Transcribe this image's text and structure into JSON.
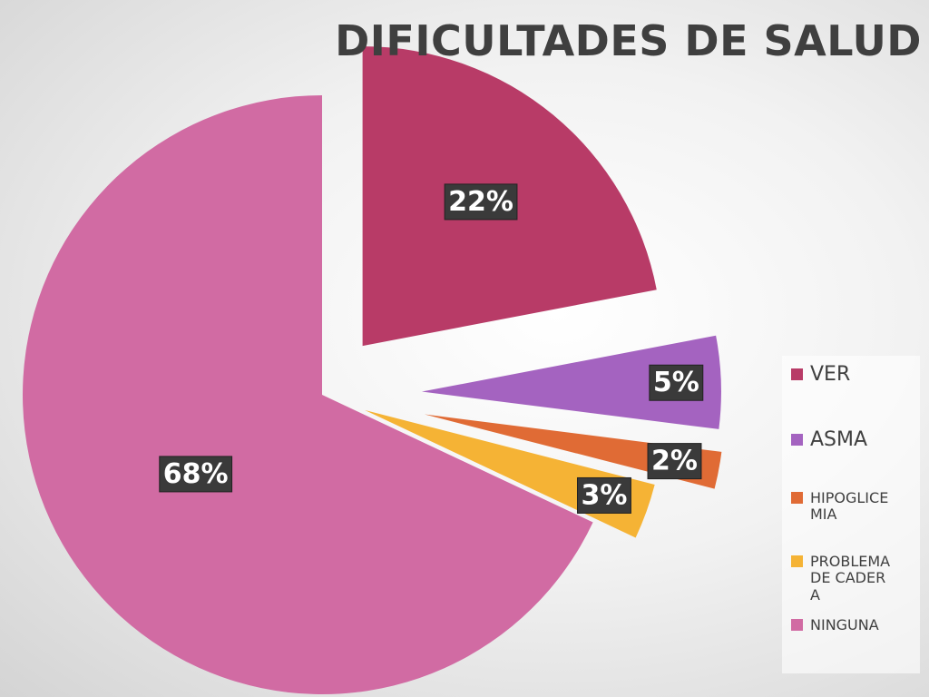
{
  "chart_data": {
    "type": "pie",
    "title": "DIFICULTADES DE SALUD",
    "categories": [
      "VER",
      "ASMA",
      "HIPOGLICEMIA",
      "PROBLEMA DE CADERA",
      "NINGUNA"
    ],
    "values": [
      22,
      5,
      2,
      3,
      68
    ],
    "value_labels": [
      "22%",
      "5%",
      "2%",
      "3%",
      "68%"
    ],
    "colors": [
      "#b83b67",
      "#a463c0",
      "#e06b35",
      "#f5b335",
      "#d16ba3"
    ],
    "legend": "right"
  }
}
